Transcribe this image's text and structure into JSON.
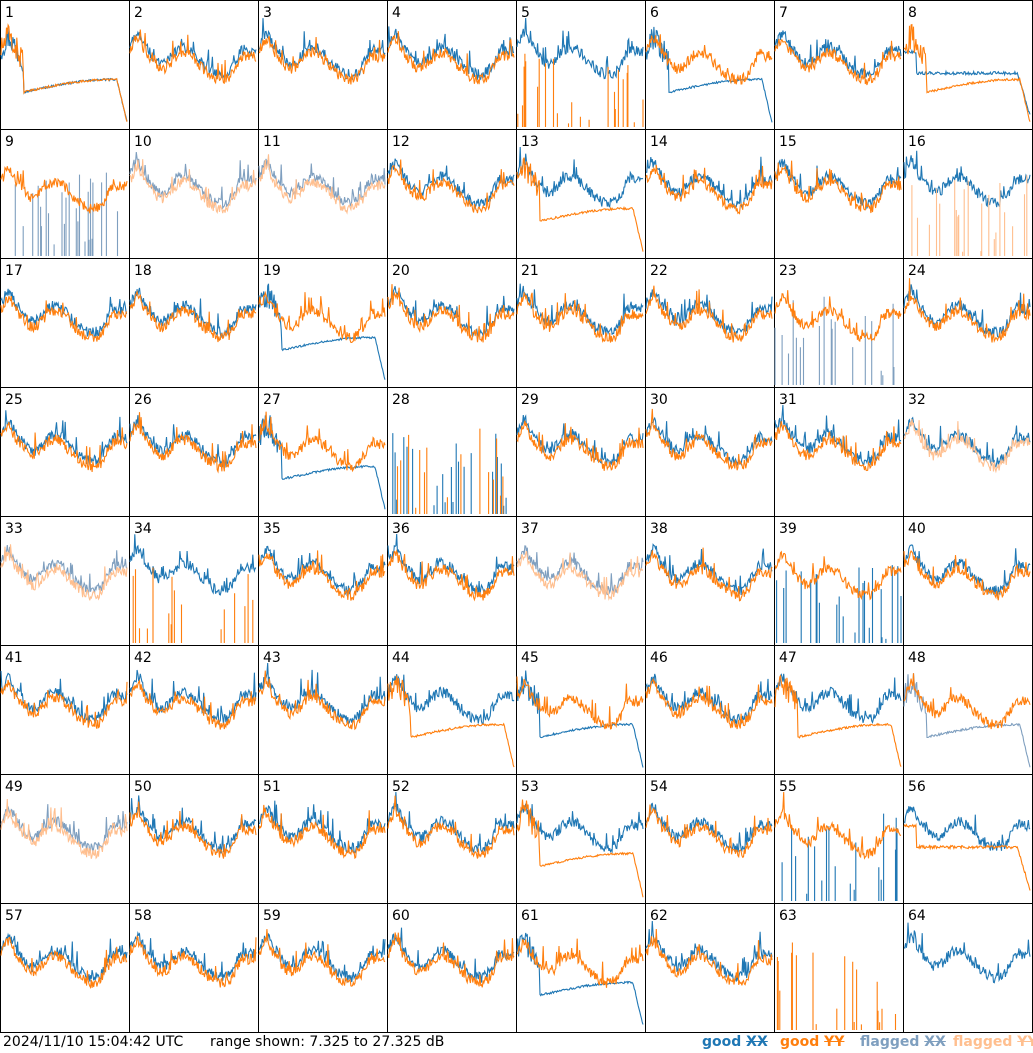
{
  "footer": {
    "timestamp": "2024/11/10 15:04:42 UTC",
    "range_text": "range shown: 7.325 to 27.325 dB"
  },
  "legend": [
    {
      "prefix": "good ",
      "suffix": "XX",
      "color": "#1f77b4"
    },
    {
      "prefix": "good ",
      "suffix": "YY",
      "color": "#ff7f0e"
    },
    {
      "prefix": "flagged ",
      "suffix": "XX",
      "color": "#7f9fbf"
    },
    {
      "prefix": "flagged ",
      "suffix": "YY",
      "color": "#ffbf8f"
    }
  ],
  "colors": {
    "good_xx": "#1f77b4",
    "good_yy": "#ff7f0e",
    "flagged_xx": "#7f9fbf",
    "flagged_yy": "#ffbf8f"
  },
  "chart_data": {
    "type": "line",
    "panel_count": 64,
    "columns": 8,
    "ylim": [
      7.325,
      27.325
    ],
    "y_unit": "dB",
    "series_names": [
      "XX",
      "YY"
    ],
    "panel_labels": [
      "1",
      "2",
      "3",
      "4",
      "5",
      "6",
      "7",
      "8",
      "9",
      "10",
      "11",
      "12",
      "13",
      "14",
      "15",
      "16",
      "17",
      "18",
      "19",
      "20",
      "21",
      "22",
      "23",
      "24",
      "25",
      "26",
      "27",
      "28",
      "29",
      "30",
      "31",
      "32",
      "33",
      "34",
      "35",
      "36",
      "37",
      "38",
      "39",
      "40",
      "41",
      "42",
      "43",
      "44",
      "45",
      "46",
      "47",
      "48",
      "49",
      "50",
      "51",
      "52",
      "53",
      "54",
      "55",
      "56",
      "57",
      "58",
      "59",
      "60",
      "61",
      "62",
      "63",
      "64"
    ],
    "panel_status": {
      "xx": [
        "good",
        "good",
        "good",
        "good",
        "good",
        "good",
        "good",
        "good",
        "flagged",
        "flagged",
        "flagged",
        "good",
        "good",
        "good",
        "good",
        "good",
        "good",
        "good",
        "good",
        "good",
        "good",
        "good",
        "flagged",
        "good",
        "good",
        "good",
        "good",
        "good",
        "good",
        "good",
        "good",
        "good",
        "flagged",
        "good",
        "good",
        "good",
        "flagged",
        "good",
        "good",
        "good",
        "good",
        "good",
        "good",
        "good",
        "good",
        "good",
        "good",
        "flagged",
        "flagged",
        "good",
        "good",
        "good",
        "good",
        "good",
        "good",
        "good",
        "good",
        "good",
        "good",
        "good",
        "good",
        "good",
        "good",
        "good"
      ],
      "yy": [
        "good",
        "good",
        "good",
        "good",
        "good",
        "good",
        "good",
        "good",
        "good",
        "flagged",
        "flagged",
        "good",
        "good",
        "good",
        "good",
        "flagged",
        "good",
        "good",
        "good",
        "good",
        "good",
        "good",
        "good",
        "good",
        "good",
        "good",
        "good",
        "good",
        "good",
        "good",
        "good",
        "flagged",
        "flagged",
        "good",
        "good",
        "good",
        "flagged",
        "good",
        "good",
        "good",
        "good",
        "good",
        "good",
        "good",
        "good",
        "good",
        "good",
        "good",
        "flagged",
        "good",
        "good",
        "good",
        "good",
        "good",
        "good",
        "good",
        "good",
        "good",
        "good",
        "good",
        "good",
        "good",
        "good",
        "good"
      ]
    },
    "panel_shape": {
      "xx": [
        "sag",
        "typ",
        "typ",
        "typ",
        "typ",
        "sag",
        "typ",
        "plateau",
        "spiky",
        "typ",
        "typ",
        "typ",
        "typ",
        "typ",
        "typ",
        "typ",
        "typ",
        "typ",
        "sag",
        "typ",
        "typ",
        "typ",
        "spiky",
        "typ",
        "typ",
        "typ",
        "sag",
        "spiky",
        "typ",
        "typ",
        "typ",
        "typ",
        "typ",
        "typ",
        "typ",
        "typ",
        "typ",
        "typ",
        "spiky",
        "typ",
        "typ",
        "typ",
        "typ",
        "typ",
        "sag",
        "typ",
        "typ",
        "sag",
        "typ",
        "typ",
        "typ",
        "typ",
        "typ",
        "typ",
        "spiky",
        "typ",
        "typ",
        "typ",
        "typ",
        "typ",
        "sag",
        "typ",
        "none",
        "typ"
      ],
      "yy": [
        "sag",
        "typ",
        "typ",
        "typ",
        "spiky",
        "typ",
        "typ",
        "sag",
        "typ",
        "typ",
        "typ",
        "typ",
        "sag",
        "typ",
        "typ",
        "spiky",
        "typ",
        "typ",
        "typ",
        "typ",
        "typ",
        "typ",
        "typ",
        "typ",
        "typ",
        "typ",
        "typ",
        "spiky",
        "typ",
        "typ",
        "typ",
        "typ",
        "typ",
        "spiky",
        "typ",
        "typ",
        "typ",
        "typ",
        "typ",
        "typ",
        "typ",
        "typ",
        "typ",
        "sag",
        "typ",
        "typ",
        "sag",
        "typ",
        "typ",
        "typ",
        "typ",
        "typ",
        "sag",
        "typ",
        "typ",
        "plateau",
        "typ",
        "typ",
        "typ",
        "typ",
        "typ",
        "typ",
        "spiky",
        "none"
      ]
    }
  }
}
